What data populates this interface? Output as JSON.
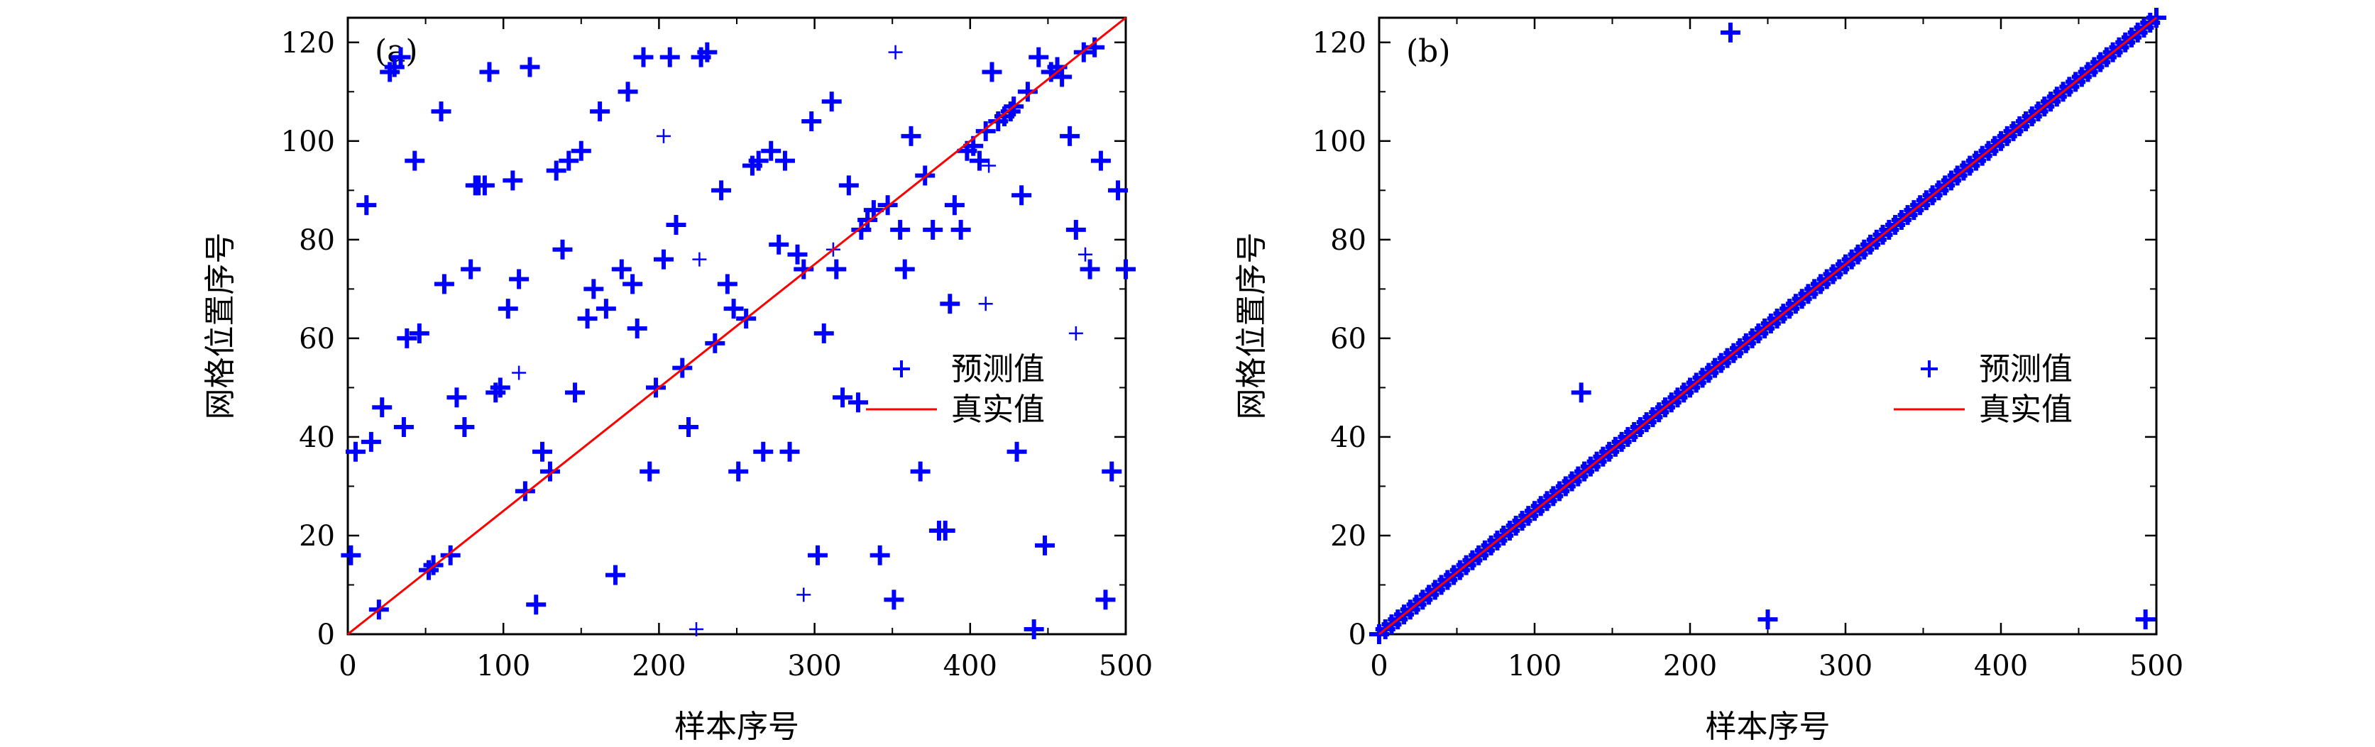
{
  "chart_data": [
    {
      "type": "scatter",
      "panel_label": "(a)",
      "xlabel": "样本序号",
      "ylabel": "网格位置序号",
      "xlim": [
        0,
        500
      ],
      "ylim": [
        0,
        125
      ],
      "xticks": [
        0,
        100,
        200,
        300,
        400,
        500
      ],
      "yticks": [
        0,
        20,
        40,
        60,
        80,
        100,
        120
      ],
      "legend_position": "center-right",
      "series": [
        {
          "name": "预测值",
          "marker": "plus",
          "color": "#0000ff",
          "points": [
            [
              2,
              16
            ],
            [
              5,
              37
            ],
            [
              12,
              87
            ],
            [
              15,
              39
            ],
            [
              20,
              5
            ],
            [
              22,
              46
            ],
            [
              27,
              114
            ],
            [
              30,
              115
            ],
            [
              34,
              117
            ],
            [
              36,
              42
            ],
            [
              38,
              60
            ],
            [
              43,
              96
            ],
            [
              46,
              61
            ],
            [
              52,
              13
            ],
            [
              55,
              14
            ],
            [
              60,
              106
            ],
            [
              62,
              71
            ],
            [
              66,
              16
            ],
            [
              70,
              48
            ],
            [
              75,
              42
            ],
            [
              79,
              74
            ],
            [
              82,
              91
            ],
            [
              84,
              91
            ],
            [
              88,
              91
            ],
            [
              91,
              114
            ],
            [
              95,
              49
            ],
            [
              98,
              50
            ],
            [
              103,
              66
            ],
            [
              106,
              92
            ],
            [
              110,
              72
            ],
            [
              114,
              29
            ],
            [
              117,
              115
            ],
            [
              121,
              6
            ],
            [
              125,
              37
            ],
            [
              130,
              33
            ],
            [
              134,
              94
            ],
            [
              138,
              78
            ],
            [
              142,
              96
            ],
            [
              146,
              49
            ],
            [
              150,
              98
            ],
            [
              154,
              64
            ],
            [
              158,
              70
            ],
            [
              162,
              106
            ],
            [
              166,
              66
            ],
            [
              172,
              12
            ],
            [
              176,
              74
            ],
            [
              180,
              110
            ],
            [
              183,
              71
            ],
            [
              186,
              62
            ],
            [
              190,
              117
            ],
            [
              194,
              33
            ],
            [
              198,
              50
            ],
            [
              203,
              76
            ],
            [
              207,
              117
            ],
            [
              211,
              83
            ],
            [
              215,
              54
            ],
            [
              219,
              42
            ],
            [
              227,
              117
            ],
            [
              231,
              118
            ],
            [
              236,
              59
            ],
            [
              240,
              90
            ],
            [
              244,
              71
            ],
            [
              248,
              66
            ],
            [
              251,
              33
            ],
            [
              256,
              64
            ],
            [
              260,
              95
            ],
            [
              264,
              96
            ],
            [
              267,
              37
            ],
            [
              272,
              98
            ],
            [
              277,
              79
            ],
            [
              281,
              96
            ],
            [
              284,
              37
            ],
            [
              289,
              77
            ],
            [
              293,
              74
            ],
            [
              298,
              104
            ],
            [
              302,
              16
            ],
            [
              306,
              61
            ],
            [
              311,
              108
            ],
            [
              314,
              74
            ],
            [
              318,
              48
            ],
            [
              322,
              91
            ],
            [
              328,
              47
            ],
            [
              330,
              82
            ],
            [
              334,
              84
            ],
            [
              338,
              86
            ],
            [
              342,
              16
            ],
            [
              347,
              87
            ],
            [
              351,
              7
            ],
            [
              355,
              82
            ],
            [
              358,
              74
            ],
            [
              362,
              101
            ],
            [
              368,
              33
            ],
            [
              371,
              93
            ],
            [
              376,
              82
            ],
            [
              380,
              21
            ],
            [
              384,
              21
            ],
            [
              387,
              67
            ],
            [
              390,
              87
            ],
            [
              394,
              82
            ],
            [
              398,
              98
            ],
            [
              402,
              99
            ],
            [
              406,
              96
            ],
            [
              410,
              102
            ],
            [
              414,
              114
            ],
            [
              418,
              104
            ],
            [
              422,
              105
            ],
            [
              426,
              106
            ],
            [
              428,
              107
            ],
            [
              430,
              37
            ],
            [
              433,
              89
            ],
            [
              437,
              110
            ],
            [
              441,
              1
            ],
            [
              444,
              117
            ],
            [
              448,
              18
            ],
            [
              452,
              114
            ],
            [
              456,
              115
            ],
            [
              459,
              113
            ],
            [
              464,
              101
            ],
            [
              468,
              82
            ],
            [
              473,
              118
            ],
            [
              477,
              74
            ],
            [
              480,
              119
            ],
            [
              484,
              96
            ],
            [
              487,
              7
            ],
            [
              491,
              33
            ],
            [
              495,
              90
            ],
            [
              500,
              74
            ]
          ]
        },
        {
          "name": "预测值",
          "marker": "plus-thin",
          "color": "#0000ff",
          "points": [
            [
              110,
              53
            ],
            [
              203,
              101
            ],
            [
              226,
              76
            ],
            [
              224,
              1
            ],
            [
              293,
              8
            ],
            [
              352,
              118
            ],
            [
              410,
              67
            ],
            [
              468,
              61
            ],
            [
              474,
              77
            ],
            [
              312,
              78
            ],
            [
              412,
              95
            ]
          ]
        },
        {
          "name": "真实值",
          "type": "line",
          "color": "#ff0000",
          "x": [
            0,
            500
          ],
          "y": [
            0,
            125
          ]
        }
      ],
      "legend": [
        {
          "label": "预测值",
          "marker": "plus",
          "color": "#0000ff"
        },
        {
          "label": "真实值",
          "marker": "line",
          "color": "#ff0000"
        }
      ]
    },
    {
      "type": "scatter",
      "panel_label": "(b)",
      "xlabel": "样本序号",
      "ylabel": "网格位置序号",
      "xlim": [
        0,
        500
      ],
      "ylim": [
        0,
        125
      ],
      "xticks": [
        0,
        100,
        200,
        300,
        400,
        500
      ],
      "yticks": [
        0,
        20,
        40,
        60,
        80,
        100,
        120
      ],
      "legend_position": "center-right",
      "series": [
        {
          "name": "预测值",
          "marker": "plus",
          "color": "#0000ff",
          "diagonal_points": {
            "x_start": 0,
            "x_end": 500,
            "step": 4,
            "slope": 0.25
          },
          "points": [
            [
              130,
              49
            ],
            [
              226,
              122
            ],
            [
              250,
              3
            ],
            [
              493,
              3
            ]
          ]
        },
        {
          "name": "真实值",
          "type": "line",
          "color": "#ff0000",
          "x": [
            0,
            500
          ],
          "y": [
            0,
            125
          ]
        }
      ],
      "legend": [
        {
          "label": "预测值",
          "marker": "plus",
          "color": "#0000ff"
        },
        {
          "label": "真实值",
          "marker": "line",
          "color": "#ff0000"
        }
      ]
    }
  ]
}
